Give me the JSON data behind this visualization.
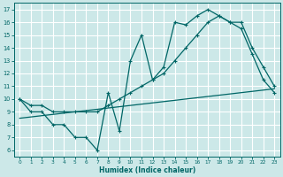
{
  "xlabel": "Humidex (Indice chaleur)",
  "bg_color": "#cce8e8",
  "grid_color": "#ffffff",
  "line_color": "#006666",
  "xlim": [
    -0.5,
    23.5
  ],
  "ylim": [
    5.5,
    17.5
  ],
  "xticks": [
    0,
    1,
    2,
    3,
    4,
    5,
    6,
    7,
    8,
    9,
    10,
    11,
    12,
    13,
    14,
    15,
    16,
    17,
    18,
    19,
    20,
    21,
    22,
    23
  ],
  "yticks": [
    6,
    7,
    8,
    9,
    10,
    11,
    12,
    13,
    14,
    15,
    16,
    17
  ],
  "series1_x": [
    0,
    1,
    2,
    3,
    4,
    5,
    6,
    7,
    8,
    9,
    10,
    11,
    12,
    13,
    14,
    15,
    16,
    17,
    18,
    19,
    20,
    21,
    22,
    23
  ],
  "series1_y": [
    10,
    9,
    9,
    8,
    8,
    7,
    7,
    6,
    10.5,
    7.5,
    13,
    15,
    11.5,
    12.5,
    16,
    15.8,
    16.5,
    17,
    16.5,
    16,
    15.5,
    13.5,
    11.5,
    10.5
  ],
  "series2_x": [
    0,
    1,
    2,
    3,
    4,
    5,
    6,
    7,
    8,
    9,
    10,
    11,
    12,
    13,
    14,
    15,
    16,
    17,
    18,
    19,
    20,
    21,
    22,
    23
  ],
  "series2_y": [
    10,
    9.5,
    9.5,
    9.0,
    9.0,
    9.0,
    9.0,
    9.0,
    9.5,
    10.0,
    10.5,
    11.0,
    11.5,
    12.0,
    13.0,
    14.0,
    15.0,
    16.0,
    16.5,
    16.0,
    16.0,
    14.0,
    12.5,
    11.0
  ],
  "series3_x": [
    0,
    23
  ],
  "series3_y": [
    8.5,
    10.8
  ]
}
